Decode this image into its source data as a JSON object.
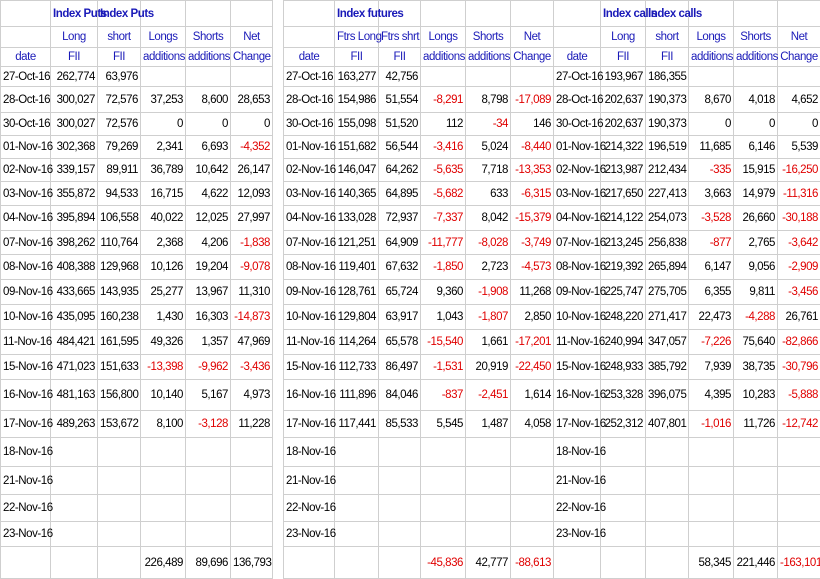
{
  "blocks": [
    {
      "titles": [
        "Index Puts",
        "Index Puts"
      ],
      "header1": [
        "Long",
        "short",
        "Longs",
        "Shorts",
        "Net"
      ],
      "header2": [
        "date",
        "FII",
        "FII",
        "additions",
        "additions",
        "Change"
      ],
      "rows": [
        [
          "27-Oct-16",
          "262,774",
          "63,976"
        ],
        [
          "28-Oct-16",
          "300,027",
          "72,576",
          "37,253",
          "8,600",
          "28,653"
        ],
        [
          "30-Oct-16",
          "300,027",
          "72,576",
          "0",
          "0",
          "0"
        ],
        [
          "01-Nov-16",
          "302,368",
          "79,269",
          "2,341",
          "6,693",
          "-4,352"
        ],
        [
          "02-Nov-16",
          "339,157",
          "89,911",
          "36,789",
          "10,642",
          "26,147"
        ],
        [
          "03-Nov-16",
          "355,872",
          "94,533",
          "16,715",
          "4,622",
          "12,093"
        ],
        [
          "04-Nov-16",
          "395,894",
          "106,558",
          "40,022",
          "12,025",
          "27,997"
        ],
        [
          "07-Nov-16",
          "398,262",
          "110,764",
          "2,368",
          "4,206",
          "-1,838"
        ],
        [
          "08-Nov-16",
          "408,388",
          "129,968",
          "10,126",
          "19,204",
          "-9,078"
        ],
        [
          "09-Nov-16",
          "433,665",
          "143,935",
          "25,277",
          "13,967",
          "11,310"
        ],
        [
          "10-Nov-16",
          "435,095",
          "160,238",
          "1,430",
          "16,303",
          "-14,873"
        ],
        [
          "11-Nov-16",
          "484,421",
          "161,595",
          "49,326",
          "1,357",
          "47,969"
        ],
        [
          "15-Nov-16",
          "471,023",
          "151,633",
          "-13,398",
          "-9,962",
          "-3,436"
        ],
        [
          "16-Nov-16",
          "481,163",
          "156,800",
          "10,140",
          "5,167",
          "4,973"
        ],
        [
          "17-Nov-16",
          "489,263",
          "153,672",
          "8,100",
          "-3,128",
          "11,228"
        ],
        [
          "18-Nov-16"
        ],
        [
          "21-Nov-16"
        ],
        [
          "22-Nov-16"
        ],
        [
          "23-Nov-16"
        ]
      ],
      "totals": [
        "226,489",
        "89,696",
        "136,793"
      ]
    },
    {
      "titles": [
        "Index futures"
      ],
      "header1": [
        "Ftrs Long",
        "Ftrs shrt",
        "Longs",
        "Shorts",
        "Net"
      ],
      "header2": [
        "date",
        "FII",
        "FII",
        "additions",
        "additions",
        "Change"
      ],
      "rows": [
        [
          "27-Oct-16",
          "163,277",
          "42,756"
        ],
        [
          "28-Oct-16",
          "154,986",
          "51,554",
          "-8,291",
          "8,798",
          "-17,089"
        ],
        [
          "30-Oct-16",
          "155,098",
          "51,520",
          "112",
          "-34",
          "146"
        ],
        [
          "01-Nov-16",
          "151,682",
          "56,544",
          "-3,416",
          "5,024",
          "-8,440"
        ],
        [
          "02-Nov-16",
          "146,047",
          "64,262",
          "-5,635",
          "7,718",
          "-13,353"
        ],
        [
          "03-Nov-16",
          "140,365",
          "64,895",
          "-5,682",
          "633",
          "-6,315"
        ],
        [
          "04-Nov-16",
          "133,028",
          "72,937",
          "-7,337",
          "8,042",
          "-15,379"
        ],
        [
          "07-Nov-16",
          "121,251",
          "64,909",
          "-11,777",
          "-8,028",
          "-3,749"
        ],
        [
          "08-Nov-16",
          "119,401",
          "67,632",
          "-1,850",
          "2,723",
          "-4,573"
        ],
        [
          "09-Nov-16",
          "128,761",
          "65,724",
          "9,360",
          "-1,908",
          "11,268"
        ],
        [
          "10-Nov-16",
          "129,804",
          "63,917",
          "1,043",
          "-1,807",
          "2,850"
        ],
        [
          "11-Nov-16",
          "114,264",
          "65,578",
          "-15,540",
          "1,661",
          "-17,201"
        ],
        [
          "15-Nov-16",
          "112,733",
          "86,497",
          "-1,531",
          "20,919",
          "-22,450"
        ],
        [
          "16-Nov-16",
          "111,896",
          "84,046",
          "-837",
          "-2,451",
          "1,614"
        ],
        [
          "17-Nov-16",
          "117,441",
          "85,533",
          "5,545",
          "1,487",
          "4,058"
        ],
        [
          "18-Nov-16"
        ],
        [
          "21-Nov-16"
        ],
        [
          "22-Nov-16"
        ],
        [
          "23-Nov-16"
        ]
      ],
      "totals": [
        "-45,836",
        "42,777",
        "-88,613"
      ]
    },
    {
      "titles": [
        "Index calls",
        "index calls"
      ],
      "header1": [
        "Long",
        "short",
        "Longs",
        "Shorts",
        "Net"
      ],
      "header2": [
        "date",
        "FII",
        "FII",
        "additions",
        "additions",
        "Change"
      ],
      "rows": [
        [
          "27-Oct-16",
          "193,967",
          "186,355"
        ],
        [
          "28-Oct-16",
          "202,637",
          "190,373",
          "8,670",
          "4,018",
          "4,652"
        ],
        [
          "30-Oct-16",
          "202,637",
          "190,373",
          "0",
          "0",
          "0"
        ],
        [
          "01-Nov-16",
          "214,322",
          "196,519",
          "11,685",
          "6,146",
          "5,539"
        ],
        [
          "02-Nov-16",
          "213,987",
          "212,434",
          "-335",
          "15,915",
          "-16,250"
        ],
        [
          "03-Nov-16",
          "217,650",
          "227,413",
          "3,663",
          "14,979",
          "-11,316"
        ],
        [
          "04-Nov-16",
          "214,122",
          "254,073",
          "-3,528",
          "26,660",
          "-30,188"
        ],
        [
          "07-Nov-16",
          "213,245",
          "256,838",
          "-877",
          "2,765",
          "-3,642"
        ],
        [
          "08-Nov-16",
          "219,392",
          "265,894",
          "6,147",
          "9,056",
          "-2,909"
        ],
        [
          "09-Nov-16",
          "225,747",
          "275,705",
          "6,355",
          "9,811",
          "-3,456"
        ],
        [
          "10-Nov-16",
          "248,220",
          "271,417",
          "22,473",
          "-4,288",
          "26,761"
        ],
        [
          "11-Nov-16",
          "240,994",
          "347,057",
          "-7,226",
          "75,640",
          "-82,866"
        ],
        [
          "15-Nov-16",
          "248,933",
          "385,792",
          "7,939",
          "38,735",
          "-30,796"
        ],
        [
          "16-Nov-16",
          "253,328",
          "396,075",
          "4,395",
          "10,283",
          "-5,888"
        ],
        [
          "17-Nov-16",
          "252,312",
          "407,801",
          "-1,016",
          "11,726",
          "-12,742"
        ],
        [
          "18-Nov-16"
        ],
        [
          "21-Nov-16"
        ],
        [
          "22-Nov-16"
        ],
        [
          "23-Nov-16"
        ]
      ],
      "totals": [
        "58,345",
        "221,446",
        "-163,101"
      ]
    }
  ]
}
